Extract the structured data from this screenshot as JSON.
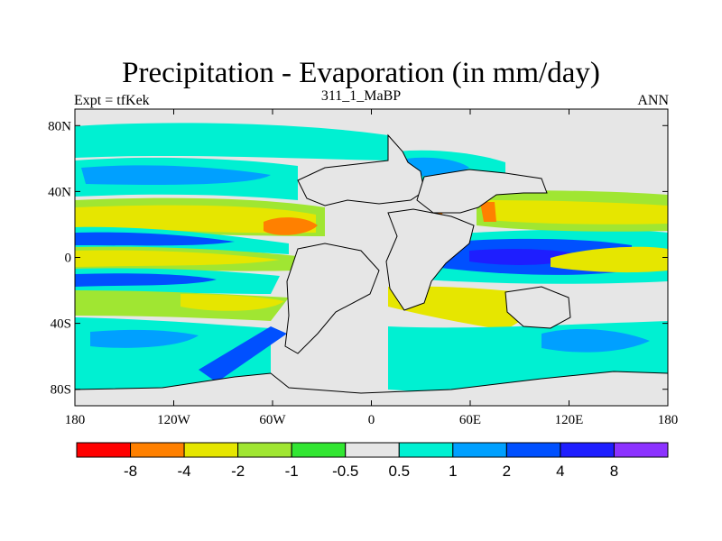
{
  "header": {
    "title": "Precipitation - Evaporation (in mm/day)",
    "subtitle": "311_1_MaBP",
    "left_note": "Expt = tfKek",
    "right_note": "ANN"
  },
  "map": {
    "lon_range": [
      -180,
      180
    ],
    "lat_range": [
      -90,
      90
    ],
    "background_color": "#e6e6e6",
    "lat_ticks": [
      {
        "value": 80,
        "label": "80N"
      },
      {
        "value": 40,
        "label": "40N"
      },
      {
        "value": 0,
        "label": "0"
      },
      {
        "value": -40,
        "label": "40S"
      },
      {
        "value": -80,
        "label": "80S"
      }
    ],
    "lon_ticks": [
      {
        "value": -180,
        "label": "180"
      },
      {
        "value": -120,
        "label": "120W"
      },
      {
        "value": -60,
        "label": "60W"
      },
      {
        "value": 0,
        "label": "0"
      },
      {
        "value": 60,
        "label": "60E"
      },
      {
        "value": 120,
        "label": "120E"
      },
      {
        "value": 180,
        "label": "180"
      }
    ]
  },
  "colorbar": {
    "colors": [
      "#ff0000",
      "#ff8000",
      "#e6e600",
      "#a0e632",
      "#32e632",
      "#e6e6e6",
      "#00f0d2",
      "#00a0ff",
      "#0050ff",
      "#1e1eff",
      "#8c32ff"
    ],
    "labels": [
      "-8",
      "-4",
      "-2",
      "-1",
      "-0.5",
      "0.5",
      "1",
      "2",
      "4",
      "8"
    ]
  },
  "chart_data": {
    "type": "heatmap",
    "title": "Precipitation - Evaporation (in mm/day)",
    "units": "mm/day",
    "levels": [
      -8,
      -4,
      -2,
      -1,
      -0.5,
      0.5,
      1,
      2,
      4,
      8
    ]
  }
}
